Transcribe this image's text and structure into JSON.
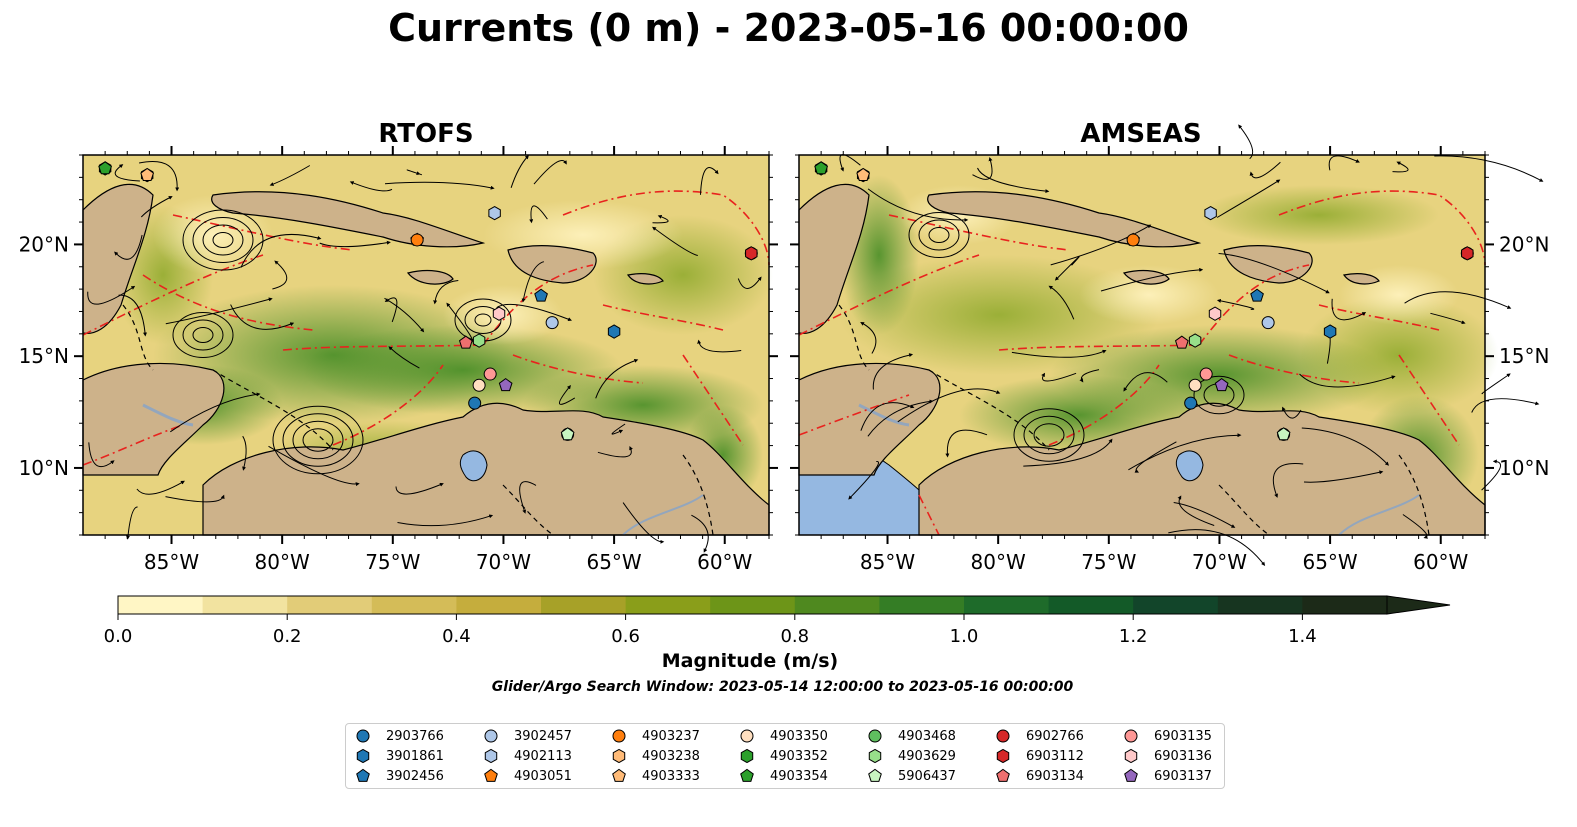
{
  "title": "Currents (0 m) - 2023-05-16 00:00:00",
  "panels": [
    {
      "title": "RTOFS"
    },
    {
      "title": "AMSEAS"
    }
  ],
  "axes": {
    "lon_ticks": [
      "85°W",
      "80°W",
      "75°W",
      "70°W",
      "65°W",
      "60°W"
    ],
    "lat_ticks": [
      "20°N",
      "15°N",
      "10°N"
    ],
    "lon_range": [
      -89,
      -58
    ],
    "lat_range": [
      7,
      24
    ]
  },
  "colorbar": {
    "label": "Magnitude (m/s)",
    "ticks": [
      "0.0",
      "0.2",
      "0.4",
      "0.6",
      "0.8",
      "1.0",
      "1.2",
      "1.4"
    ],
    "range": [
      0,
      1.5
    ],
    "extend": "max",
    "colors": [
      "#fff6c5",
      "#f2e3a0",
      "#e2cc78",
      "#d4bc58",
      "#c5ad3d",
      "#a7a128",
      "#8a9e1a",
      "#6d9518",
      "#4f891f",
      "#347d25",
      "#1e6b2a",
      "#135a28",
      "#12452a",
      "#173520",
      "#1c2a18"
    ]
  },
  "search_window": "Glider/Argo Search Window: 2023-05-14 12:00:00 to 2023-05-16 00:00:00",
  "legend": [
    {
      "id": "2903766",
      "color": "#1f77b4",
      "marker": "circle"
    },
    {
      "id": "3901861",
      "color": "#1f77b4",
      "marker": "hexagon"
    },
    {
      "id": "3902456",
      "color": "#1f77b4",
      "marker": "pentagon"
    },
    {
      "id": "3902457",
      "color": "#aec7e8",
      "marker": "circle"
    },
    {
      "id": "4902113",
      "color": "#aec7e8",
      "marker": "hexagon"
    },
    {
      "id": "4903051",
      "color": "#ff7f0e",
      "marker": "pentagon"
    },
    {
      "id": "4903237",
      "color": "#ff7f0e",
      "marker": "circle"
    },
    {
      "id": "4903238",
      "color": "#ffbb78",
      "marker": "hexagon"
    },
    {
      "id": "4903333",
      "color": "#ffbb78",
      "marker": "pentagon"
    },
    {
      "id": "4903350",
      "color": "#ffdfc0",
      "marker": "circle"
    },
    {
      "id": "4903352",
      "color": "#2ca02c",
      "marker": "hexagon"
    },
    {
      "id": "4903354",
      "color": "#2ca02c",
      "marker": "pentagon"
    },
    {
      "id": "4903468",
      "color": "#5fbf5f",
      "marker": "circle"
    },
    {
      "id": "4903629",
      "color": "#98df8a",
      "marker": "hexagon"
    },
    {
      "id": "5906437",
      "color": "#c8f5c0",
      "marker": "pentagon"
    },
    {
      "id": "6902766",
      "color": "#d62728",
      "marker": "circle"
    },
    {
      "id": "6903112",
      "color": "#d62728",
      "marker": "hexagon"
    },
    {
      "id": "6903134",
      "color": "#ef6f6f",
      "marker": "pentagon"
    },
    {
      "id": "6903135",
      "color": "#ff9896",
      "marker": "circle"
    },
    {
      "id": "6903136",
      "color": "#ffc9c9",
      "marker": "hexagon"
    },
    {
      "id": "6903137",
      "color": "#9467bd",
      "marker": "pentagon"
    }
  ],
  "floats": [
    {
      "id": "2903766",
      "lon": -71.3,
      "lat": 12.9
    },
    {
      "id": "3901861",
      "lon": -65.0,
      "lat": 16.1
    },
    {
      "id": "3902456",
      "lon": -68.3,
      "lat": 17.7
    },
    {
      "id": "3902457",
      "lon": -67.8,
      "lat": 16.5
    },
    {
      "id": "4902113",
      "lon": -70.4,
      "lat": 21.4
    },
    {
      "id": "4903051",
      "lon": -73.9,
      "lat": 20.2
    },
    {
      "id": "4903237",
      "lon": -73.9,
      "lat": 20.2
    },
    {
      "id": "4903238",
      "lon": -86.1,
      "lat": 23.1
    },
    {
      "id": "4903333",
      "lon": -86.1,
      "lat": 23.1
    },
    {
      "id": "4903350",
      "lon": -71.1,
      "lat": 13.7
    },
    {
      "id": "4903352",
      "lon": -88.0,
      "lat": 23.4
    },
    {
      "id": "4903354",
      "lon": -88.0,
      "lat": 23.4
    },
    {
      "id": "4903468",
      "lon": -67.1,
      "lat": 11.5
    },
    {
      "id": "4903629",
      "lon": -71.1,
      "lat": 15.7
    },
    {
      "id": "5906437",
      "lon": -67.1,
      "lat": 11.5
    },
    {
      "id": "6902766",
      "lon": -58.8,
      "lat": 19.6
    },
    {
      "id": "6903112",
      "lon": -58.8,
      "lat": 19.6
    },
    {
      "id": "6903134",
      "lon": -71.7,
      "lat": 15.6
    },
    {
      "id": "6903135",
      "lon": -70.6,
      "lat": 14.2
    },
    {
      "id": "6903136",
      "lon": -70.2,
      "lat": 16.9
    },
    {
      "id": "6903137",
      "lon": -69.9,
      "lat": 13.7
    }
  ]
}
